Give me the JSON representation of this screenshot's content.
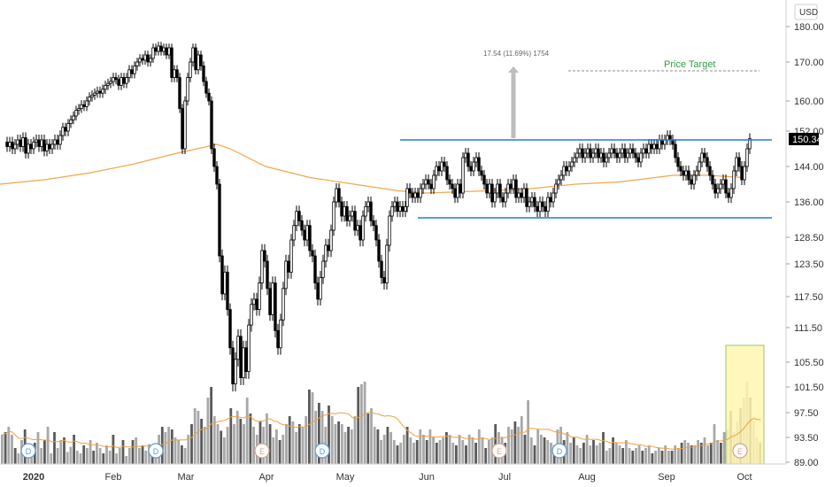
{
  "chart_data": {
    "type": "candlestick",
    "currency": "USD",
    "current_price": "150.34",
    "y_ticks": [
      "180.00",
      "170.00",
      "160.00",
      "152.00",
      "150.34",
      "144.00",
      "136.00",
      "128.50",
      "123.50",
      "117.50",
      "111.50",
      "105.50",
      "101.50",
      "97.50",
      "93.50",
      "89.00"
    ],
    "x_ticks": [
      "2020",
      "Feb",
      "Mar",
      "Apr",
      "May",
      "Jun",
      "Jul",
      "Aug",
      "Sep",
      "Oct"
    ],
    "annotations": {
      "price_target": "Price Target",
      "measured_move": "17.54 (11.69%) 1754"
    },
    "event_markers": [
      "D",
      "D",
      "E",
      "D",
      "E",
      "D",
      "E",
      "D"
    ],
    "resistance_level": 150.34,
    "support_level": 132,
    "price_target_level": 167.5,
    "moving_average": [
      [
        0,
        140
      ],
      [
        50,
        141
      ],
      [
        100,
        142.5
      ],
      [
        150,
        144.5
      ],
      [
        200,
        147
      ],
      [
        245,
        149
      ],
      [
        260,
        148
      ],
      [
        300,
        144
      ],
      [
        350,
        141.5
      ],
      [
        400,
        140
      ],
      [
        450,
        138.5
      ],
      [
        480,
        138
      ],
      [
        550,
        138.5
      ],
      [
        600,
        139
      ],
      [
        650,
        140
      ],
      [
        700,
        140.5
      ],
      [
        760,
        142
      ],
      [
        800,
        142
      ],
      [
        840,
        141.5
      ]
    ],
    "candles": [
      [
        [
          5,
          149.5
        ],
        [
          8,
          148.5
        ],
        [
          11,
          149.5
        ],
        [
          14,
          148
        ],
        [
          17,
          149
        ],
        [
          20,
          150
        ],
        [
          23,
          148.5
        ],
        [
          26,
          150.5
        ],
        [
          29,
          147
        ],
        [
          32,
          149
        ],
        [
          35,
          148
        ],
        [
          38,
          149.5
        ],
        [
          41,
          150
        ],
        [
          44,
          148.5
        ],
        [
          47,
          150
        ],
        [
          50,
          147.5
        ],
        [
          53,
          149
        ],
        [
          56,
          148
        ],
        [
          59,
          149
        ],
        [
          62,
          150
        ],
        [
          65,
          149
        ],
        [
          68,
          151
        ],
        [
          71,
          153
        ],
        [
          74,
          152
        ],
        [
          77,
          154
        ],
        [
          80,
          155
        ],
        [
          83,
          156
        ],
        [
          86,
          157.5
        ],
        [
          89,
          158
        ],
        [
          92,
          159
        ],
        [
          95,
          158.5
        ],
        [
          98,
          160
        ],
        [
          101,
          161
        ],
        [
          104,
          161.5
        ],
        [
          107,
          162
        ],
        [
          110,
          162.5
        ],
        [
          113,
          162
        ],
        [
          116,
          163
        ],
        [
          119,
          164
        ],
        [
          122,
          164.5
        ],
        [
          125,
          165
        ],
        [
          128,
          166
        ],
        [
          131,
          165.5
        ],
        [
          134,
          164
        ],
        [
          137,
          166
        ],
        [
          140,
          164.5
        ],
        [
          143,
          166
        ],
        [
          146,
          168
        ],
        [
          149,
          167
        ],
        [
          152,
          169
        ],
        [
          155,
          170
        ],
        [
          158,
          171
        ],
        [
          161,
          170.5
        ],
        [
          164,
          172
        ],
        [
          167,
          170
        ],
        [
          170,
          171
        ],
        [
          173,
          174
        ],
        [
          176,
          173
        ],
        [
          179,
          174.5
        ],
        [
          182,
          173
        ],
        [
          185,
          174
        ],
        [
          188,
          172
        ],
        [
          191,
          174
        ],
        [
          194,
          166
        ],
        [
          197,
          168
        ],
        [
          200,
          166
        ],
        [
          203,
          158
        ],
        [
          206,
          148
        ],
        [
          209,
          160
        ],
        [
          212,
          166
        ],
        [
          215,
          170
        ],
        [
          218,
          174
        ],
        [
          221,
          168
        ],
        [
          224,
          172
        ],
        [
          227,
          169
        ],
        [
          230,
          165
        ],
        [
          233,
          162
        ],
        [
          236,
          160
        ],
        [
          239,
          148
        ],
        [
          242,
          144
        ],
        [
          245,
          140
        ],
        [
          248,
          125
        ],
        [
          251,
          118
        ],
        [
          254,
          122
        ],
        [
          257,
          115
        ],
        [
          260,
          108
        ],
        [
          263,
          102
        ],
        [
          266,
          106
        ],
        [
          269,
          110
        ],
        [
          272,
          103
        ],
        [
          275,
          108
        ],
        [
          278,
          104
        ],
        [
          281,
          112
        ],
        [
          284,
          116
        ],
        [
          287,
          117
        ],
        [
          290,
          115
        ],
        [
          293,
          120
        ],
        [
          296,
          126
        ],
        [
          299,
          124
        ],
        [
          302,
          119
        ],
        [
          305,
          114
        ],
        [
          308,
          120
        ],
        [
          311,
          111
        ],
        [
          314,
          108
        ],
        [
          317,
          113
        ],
        [
          320,
          119
        ],
        [
          323,
          124
        ],
        [
          326,
          122
        ],
        [
          329,
          128
        ],
        [
          332,
          131
        ],
        [
          335,
          134
        ],
        [
          338,
          132
        ],
        [
          341,
          130
        ],
        [
          344,
          128
        ],
        [
          347,
          131
        ],
        [
          350,
          126
        ],
        [
          353,
          125
        ],
        [
          356,
          120
        ],
        [
          359,
          117
        ],
        [
          362,
          121
        ],
        [
          365,
          124
        ],
        [
          368,
          127
        ],
        [
          371,
          126
        ],
        [
          374,
          130
        ],
        [
          377,
          136
        ],
        [
          380,
          139
        ],
        [
          383,
          136
        ],
        [
          386,
          133
        ],
        [
          389,
          135
        ],
        [
          392,
          132
        ],
        [
          395,
          133
        ],
        [
          398,
          134
        ],
        [
          401,
          130
        ],
        [
          404,
          131
        ],
        [
          407,
          128
        ],
        [
          410,
          133
        ],
        [
          413,
          135
        ],
        [
          416,
          136
        ],
        [
          419,
          132
        ],
        [
          422,
          131
        ],
        [
          425,
          128
        ],
        [
          428,
          124
        ],
        [
          431,
          121
        ],
        [
          434,
          120
        ],
        [
          437,
          127
        ],
        [
          440,
          133
        ],
        [
          443,
          135
        ],
        [
          446,
          136
        ],
        [
          449,
          134
        ],
        [
          452,
          135
        ],
        [
          455,
          134
        ],
        [
          458,
          135
        ]
      ],
      [
        [
          460,
          139
        ],
        [
          463,
          138
        ],
        [
          466,
          137
        ],
        [
          469,
          138
        ],
        [
          472,
          137
        ],
        [
          475,
          139
        ],
        [
          478,
          140
        ],
        [
          481,
          141
        ],
        [
          484,
          140
        ],
        [
          487,
          139
        ],
        [
          490,
          142
        ],
        [
          493,
          144
        ],
        [
          496,
          143
        ],
        [
          499,
          145
        ],
        [
          502,
          144
        ],
        [
          505,
          141
        ],
        [
          508,
          140
        ],
        [
          511,
          139
        ],
        [
          514,
          137
        ],
        [
          517,
          140
        ],
        [
          520,
          138
        ],
        [
          523,
          146
        ],
        [
          526,
          147
        ],
        [
          529,
          144
        ],
        [
          532,
          143
        ],
        [
          535,
          145
        ],
        [
          538,
          146
        ],
        [
          541,
          143
        ],
        [
          544,
          142
        ],
        [
          547,
          140
        ],
        [
          550,
          138
        ],
        [
          553,
          140
        ],
        [
          556,
          136
        ],
        [
          559,
          138
        ],
        [
          562,
          140
        ],
        [
          565,
          137
        ],
        [
          568,
          136
        ],
        [
          571,
          138
        ],
        [
          574,
          140
        ],
        [
          577,
          139
        ],
        [
          580,
          141
        ],
        [
          583,
          137
        ],
        [
          586,
          138
        ],
        [
          589,
          137
        ],
        [
          592,
          139
        ],
        [
          595,
          135
        ],
        [
          598,
          136
        ],
        [
          601,
          137
        ],
        [
          604,
          135
        ],
        [
          607,
          134
        ],
        [
          610,
          136
        ],
        [
          613,
          135
        ],
        [
          616,
          134
        ],
        [
          619,
          137
        ],
        [
          622,
          136
        ],
        [
          625,
          138
        ],
        [
          628,
          140
        ],
        [
          631,
          141
        ],
        [
          634,
          142
        ],
        [
          637,
          144
        ],
        [
          640,
          143
        ],
        [
          643,
          144
        ],
        [
          646,
          145
        ],
        [
          649,
          146
        ],
        [
          652,
          147
        ],
        [
          655,
          148
        ],
        [
          658,
          146
        ],
        [
          661,
          147
        ],
        [
          664,
          148
        ],
        [
          667,
          146
        ],
        [
          670,
          147
        ],
        [
          673,
          148
        ],
        [
          676,
          146
        ],
        [
          679,
          147
        ],
        [
          682,
          145
        ],
        [
          685,
          146
        ],
        [
          688,
          147
        ],
        [
          691,
          148
        ],
        [
          694,
          147
        ],
        [
          697,
          146
        ],
        [
          700,
          147
        ],
        [
          703,
          148
        ],
        [
          706,
          146
        ],
        [
          709,
          147
        ],
        [
          712,
          148
        ],
        [
          715,
          147
        ],
        [
          718,
          146
        ],
        [
          721,
          145
        ],
        [
          724,
          147
        ],
        [
          727,
          148
        ],
        [
          730,
          147
        ],
        [
          733,
          149
        ],
        [
          736,
          148
        ],
        [
          739,
          149
        ],
        [
          742,
          148
        ],
        [
          745,
          150
        ],
        [
          748,
          149
        ],
        [
          751,
          150
        ],
        [
          754,
          151
        ],
        [
          757,
          150
        ],
        [
          760,
          149
        ],
        [
          763,
          146
        ],
        [
          766,
          144
        ],
        [
          769,
          143
        ],
        [
          772,
          142
        ],
        [
          775,
          143
        ],
        [
          778,
          141
        ],
        [
          781,
          140
        ],
        [
          784,
          142
        ],
        [
          787,
          143
        ],
        [
          790,
          145
        ],
        [
          793,
          147
        ],
        [
          796,
          146
        ],
        [
          799,
          144
        ],
        [
          802,
          142
        ],
        [
          805,
          140
        ],
        [
          808,
          138
        ],
        [
          811,
          139
        ],
        [
          814,
          140
        ],
        [
          817,
          141
        ],
        [
          820,
          138
        ],
        [
          823,
          137
        ],
        [
          826,
          139
        ],
        [
          829,
          143
        ],
        [
          832,
          146
        ],
        [
          835,
          144
        ],
        [
          838,
          141
        ],
        [
          841,
          144
        ],
        [
          844,
          148
        ],
        [
          847,
          150.3
        ]
      ]
    ],
    "volume": [
      0.22,
      0.24,
      0.28,
      0.22,
      0.12,
      0.08,
      0.18,
      0.26,
      0.15,
      0.1,
      0.16,
      0.24,
      0.12,
      0.18,
      0.28,
      0.08,
      0.24,
      0.12,
      0.18,
      0.2,
      0.09,
      0.13,
      0.22,
      0.1,
      0.08,
      0.14,
      0.12,
      0.18,
      0.1,
      0.16,
      0.12,
      0.08,
      0.14,
      0.1,
      0.22,
      0.08,
      0.12,
      0.18,
      0.06,
      0.12,
      0.18,
      0.2,
      0.12,
      0.14,
      0.1,
      0.15,
      0.1,
      0.08,
      0.22,
      0.28,
      0.24,
      0.28,
      0.26,
      0.2,
      0.18,
      0.14,
      0.12,
      0.22,
      0.3,
      0.42,
      0.4,
      0.34,
      0.28,
      0.5,
      0.58,
      0.36,
      0.3,
      0.25,
      0.2,
      0.28,
      0.42,
      0.3,
      0.4,
      0.34,
      0.3,
      0.5,
      0.38,
      0.28,
      0.22,
      0.32,
      0.28,
      0.38,
      0.3,
      0.2,
      0.26,
      0.18,
      0.22,
      0.3,
      0.36,
      0.32,
      0.24,
      0.3,
      0.28,
      0.36,
      0.56,
      0.54,
      0.4,
      0.46,
      0.4,
      0.28,
      0.44,
      0.36,
      0.3,
      0.32,
      0.3,
      0.24,
      0.28,
      0.26,
      0.36,
      0.58,
      0.6,
      0.62,
      0.38,
      0.42,
      0.28,
      0.26,
      0.18,
      0.22,
      0.28,
      0.24,
      0.18,
      0.14,
      0.16,
      0.22,
      0.28,
      0.2,
      0.16,
      0.18,
      0.26,
      0.22,
      0.18,
      0.26,
      0.2,
      0.16,
      0.18,
      0.2,
      0.24,
      0.22,
      0.16,
      0.14,
      0.22,
      0.18,
      0.14,
      0.22,
      0.2,
      0.16,
      0.26,
      0.2,
      0.12,
      0.18,
      0.2,
      0.3,
      0.24,
      0.2,
      0.16,
      0.28,
      0.26,
      0.32,
      0.28,
      0.36,
      0.22,
      0.48,
      0.2,
      0.14,
      0.26,
      0.22,
      0.2,
      0.18,
      0.16,
      0.14,
      0.26,
      0.28,
      0.18,
      0.24,
      0.16,
      0.2,
      0.14,
      0.12,
      0.16,
      0.22,
      0.14,
      0.18,
      0.14,
      0.16,
      0.24,
      0.1,
      0.12,
      0.2,
      0.16,
      0.14,
      0.12,
      0.18,
      0.12,
      0.1,
      0.12,
      0.14,
      0.1,
      0.12,
      0.14,
      0.08,
      0.1,
      0.12,
      0.1,
      0.14,
      0.1,
      0.1,
      0.14,
      0.12,
      0.16,
      0.18,
      0.16,
      0.14,
      0.14,
      0.18,
      0.16,
      0.2,
      0.14,
      0.16,
      0.3,
      0.18,
      0.16,
      0.24,
      0.26,
      0.4,
      0.24,
      0.32,
      0.42,
      0.5,
      0.62,
      0.5,
      0.32,
      0.2,
      0.16
    ]
  }
}
